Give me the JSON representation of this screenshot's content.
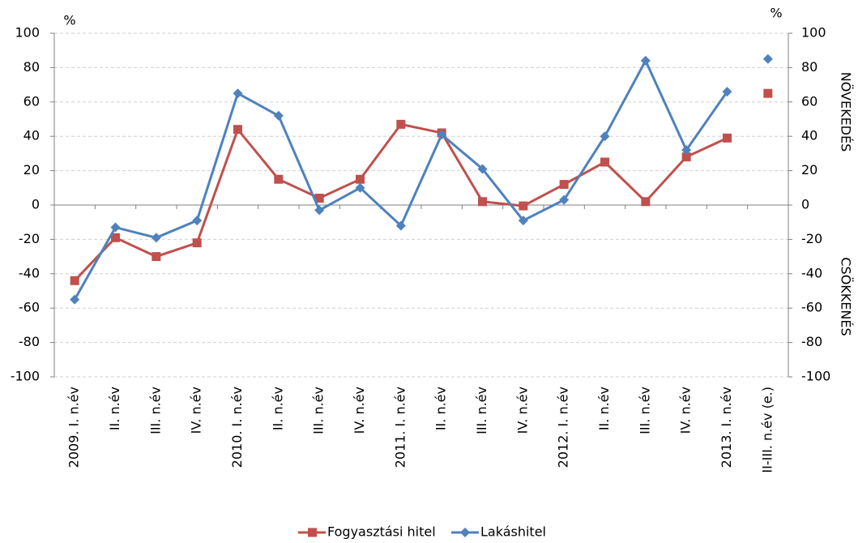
{
  "chart_data": {
    "type": "line",
    "categories": [
      "2009. I. n.év",
      "II. n.év",
      "III. n.év",
      "IV. n.év",
      "2010. I. n.év",
      "II. n.év",
      "III. n.év",
      "IV. n.év",
      "2011. I. n.év",
      "II. n.év",
      "III. n.év",
      "IV. n.év",
      "2012. I. n.év",
      "II. n.év",
      "III. n.év",
      "IV. n.év",
      "2013. I. n.év",
      "II-III. n.év (e.)"
    ],
    "series": [
      {
        "name": "Fogyasztási hitel",
        "color": "#c0504d",
        "values": [
          -44,
          -19,
          -30,
          -22,
          44,
          15,
          4,
          15,
          47,
          42,
          2,
          -0.5,
          12,
          25,
          2,
          28,
          39,
          65
        ]
      },
      {
        "name": "Lakáshitel",
        "color": "#4f81bd",
        "values": [
          -55,
          -13,
          -19,
          -9,
          65,
          52,
          -3,
          10,
          -12,
          41,
          21,
          -9,
          3,
          40,
          84,
          32,
          66,
          85
        ]
      }
    ],
    "ylim": [
      -100,
      100
    ],
    "yticks": [
      -100,
      -80,
      -60,
      -40,
      -20,
      0,
      20,
      40,
      60,
      80,
      100
    ],
    "y2lim": [
      -100,
      100
    ],
    "y2ticks": [
      -100,
      -80,
      -60,
      -40,
      -20,
      0,
      20,
      40,
      60,
      80,
      100
    ],
    "ylabel": "%",
    "y2label": "%",
    "annotations": [
      "NÖVEKEDÉS",
      "CSÖKKENÉS"
    ],
    "grid": true,
    "legend": "bottom"
  }
}
